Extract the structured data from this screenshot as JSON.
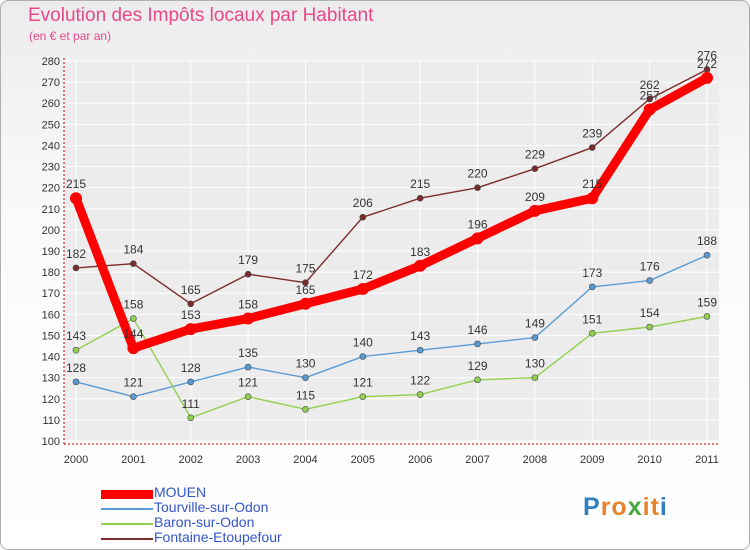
{
  "header": {
    "title": "Evolution des Impôts locaux par Habitant",
    "subtitle": "(en € et par an)"
  },
  "logo": {
    "text": "Proxiti",
    "letters": [
      "P",
      "r",
      "o",
      "x",
      "i",
      "t",
      "i"
    ],
    "colors": [
      "#2f7fc1",
      "#e8842c",
      "#e8842c",
      "#4aa83c",
      "#e8842c",
      "#e8842c",
      "#2f7fc1"
    ]
  },
  "colors": {
    "title": "#e8488a",
    "axis": "#cc0000",
    "grid": "#ffffff"
  },
  "chart_data": {
    "type": "line",
    "title": "Evolution des Impôts locaux par Habitant",
    "subtitle": "(en € et par an)",
    "xlabel": "",
    "ylabel": "",
    "categories": [
      "2000",
      "2001",
      "2002",
      "2003",
      "2004",
      "2005",
      "2006",
      "2007",
      "2008",
      "2009",
      "2010",
      "2011"
    ],
    "ylim": [
      100,
      280
    ],
    "yticks": [
      100,
      110,
      120,
      130,
      140,
      150,
      160,
      170,
      180,
      190,
      200,
      210,
      220,
      230,
      240,
      250,
      260,
      270,
      280
    ],
    "grid": true,
    "legend_position": "bottom-left",
    "series": [
      {
        "name": "MOUEN",
        "color": "#ff0000",
        "values": [
          215,
          144,
          153,
          158,
          165,
          172,
          183,
          196,
          209,
          215,
          257,
          272
        ]
      },
      {
        "name": "Tourville-sur-Odon",
        "color": "#5b9bd5",
        "values": [
          128,
          121,
          128,
          135,
          130,
          140,
          143,
          146,
          149,
          173,
          176,
          188
        ]
      },
      {
        "name": "Baron-sur-Odon",
        "color": "#92d050",
        "values": [
          143,
          158,
          111,
          121,
          115,
          121,
          122,
          129,
          130,
          151,
          154,
          159
        ]
      },
      {
        "name": "Fontaine-Etoupefour",
        "color": "#7b2c2c",
        "values": [
          182,
          184,
          165,
          179,
          175,
          206,
          215,
          220,
          229,
          239,
          262,
          276
        ]
      }
    ]
  }
}
